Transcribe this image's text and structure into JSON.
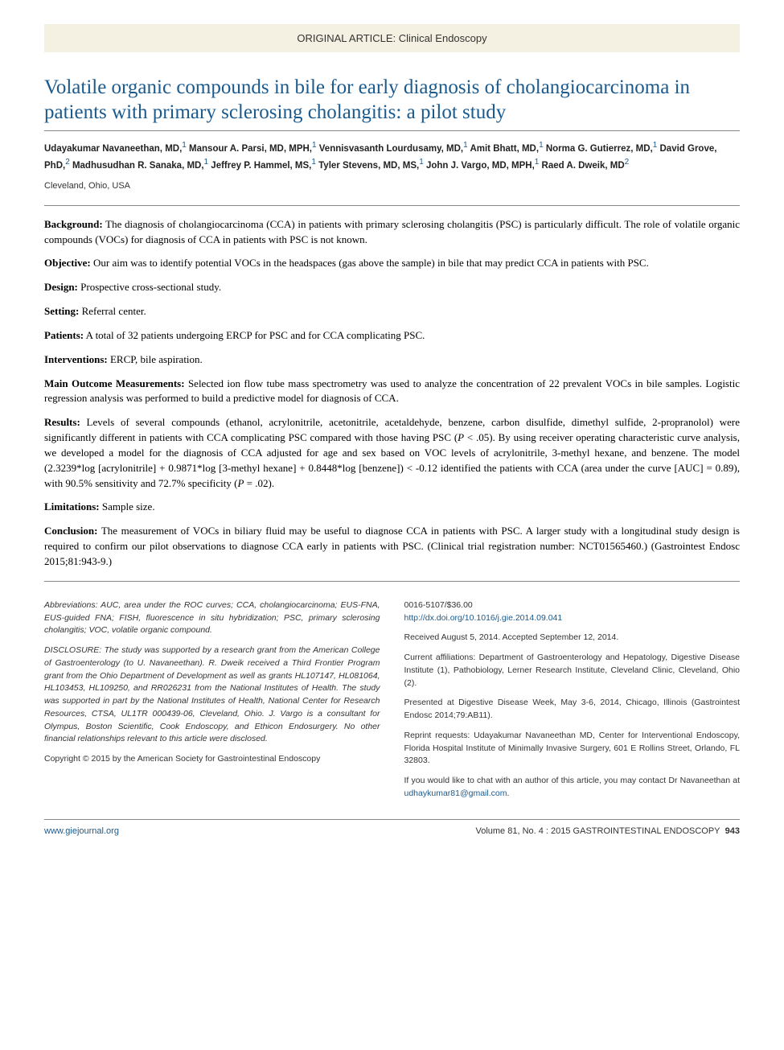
{
  "banner": {
    "text": "ORIGINAL ARTICLE: Clinical Endoscopy"
  },
  "title": "Volatile organic compounds in bile for early diagnosis of cholangiocarcinoma in patients with primary sclerosing cholangitis: a pilot study",
  "authors_html": "Udayakumar Navaneethan, MD,<sup class='aff-sup'>1</sup> Mansour A. Parsi, MD, MPH,<sup class='aff-sup'>1</sup> Vennisvasanth Lourdusamy, MD,<sup class='aff-sup'>1</sup> Amit Bhatt, MD,<sup class='aff-sup'>1</sup> Norma G. Gutierrez, MD,<sup class='aff-sup'>1</sup> David Grove, PhD,<sup class='aff-sup'>2</sup> Madhusudhan R. Sanaka, MD,<sup class='aff-sup'>1</sup> Jeffrey P. Hammel, MS,<sup class='aff-sup'>1</sup> Tyler Stevens, MD, MS,<sup class='aff-sup'>1</sup> John J. Vargo, MD, MPH,<sup class='aff-sup'>1</sup> Raed A. Dweik, MD<sup class='aff-sup'>2</sup>",
  "location": "Cleveland, Ohio, USA",
  "abstract": [
    {
      "label": "Background:",
      "text": " The diagnosis of cholangiocarcinoma (CCA) in patients with primary sclerosing cholangitis (PSC) is particularly difficult. The role of volatile organic compounds (VOCs) for diagnosis of CCA in patients with PSC is not known."
    },
    {
      "label": "Objective:",
      "text": " Our aim was to identify potential VOCs in the headspaces (gas above the sample) in bile that may predict CCA in patients with PSC."
    },
    {
      "label": "Design:",
      "text": " Prospective cross-sectional study."
    },
    {
      "label": "Setting:",
      "text": " Referral center."
    },
    {
      "label": "Patients:",
      "text": " A total of 32 patients undergoing ERCP for PSC and for CCA complicating PSC."
    },
    {
      "label": "Interventions:",
      "text": " ERCP, bile aspiration."
    },
    {
      "label": "Main Outcome Measurements:",
      "text": " Selected ion flow tube mass spectrometry was used to analyze the concentration of 22 prevalent VOCs in bile samples. Logistic regression analysis was performed to build a predictive model for diagnosis of CCA."
    },
    {
      "label": "Results:",
      "text": " Levels of several compounds (ethanol, acrylonitrile, acetonitrile, acetaldehyde, benzene, carbon disulfide, dimethyl sulfide, 2-propranolol) were significantly different in patients with CCA complicating PSC compared with those having PSC (<span class='italic'>P</span> &lt; .05). By using receiver operating characteristic curve analysis, we developed a model for the diagnosis of CCA adjusted for age and sex based on VOC levels of acrylonitrile, 3-methyl hexane, and benzene. The model (2.3239*log [acrylonitrile] + 0.9871*log [3-methyl hexane] + 0.8448*log [benzene]) &lt; -0.12 identified the patients with CCA (area under the curve [AUC] = 0.89), with 90.5% sensitivity and 72.7% specificity (<span class='italic'>P</span> = .02)."
    },
    {
      "label": "Limitations:",
      "text": " Sample size."
    },
    {
      "label": "Conclusion:",
      "text": " The measurement of VOCs in biliary fluid may be useful to diagnose CCA in patients with PSC. A larger study with a longitudinal study design is required to confirm our pilot observations to diagnose CCA early in patients with PSC. (Clinical trial registration number: NCT01565460.) (Gastrointest Endosc 2015;81:943-9.)"
    }
  ],
  "footer_left": {
    "abbrev": "Abbreviations: AUC, area under the ROC curves; CCA, cholangiocarcinoma; EUS-FNA, EUS-guided FNA; FISH, fluorescence in situ hybridization; PSC, primary sclerosing cholangitis; VOC, volatile organic compound.",
    "disclosure": "DISCLOSURE: The study was supported by a research grant from the American College of Gastroenterology (to U. Navaneethan). R. Dweik received a Third Frontier Program grant from the Ohio Department of Development as well as grants HL107147, HL081064, HL103453, HL109250, and RR026231 from the National Institutes of Health. The study was supported in part by the National Institutes of Health, National Center for Research Resources, CTSA, UL1TR 000439-06, Cleveland, Ohio. J. Vargo is a consultant for Olympus, Boston Scientific, Cook Endoscopy, and Ethicon Endosurgery. No other financial relationships relevant to this article were disclosed.",
    "copyright": "Copyright © 2015 by the American Society for Gastrointestinal Endoscopy"
  },
  "footer_right": {
    "issn": "0016-5107/$36.00",
    "doi": "http://dx.doi.org/10.1016/j.gie.2014.09.041",
    "dates": "Received August 5, 2014. Accepted September 12, 2014.",
    "affiliations": "Current affiliations: Department of Gastroenterology and Hepatology, Digestive Disease Institute (1), Pathobiology, Lerner Research Institute, Cleveland Clinic, Cleveland, Ohio (2).",
    "presented": "Presented at Digestive Disease Week, May 3-6, 2014, Chicago, Illinois (Gastrointest Endosc 2014;79:AB11).",
    "reprints": "Reprint requests: Udayakumar Navaneethan MD, Center for Interventional Endoscopy, Florida Hospital Institute of Minimally Invasive Surgery, 601 E Rollins Street, Orlando, FL 32803.",
    "contact_pre": "If you would like to chat with an author of this article, you may contact Dr Navaneethan at ",
    "contact_email": "udhaykumar81@gmail.com"
  },
  "page_footer": {
    "url": "www.giejournal.org",
    "issue": "Volume 81, No. 4 : 2015  GASTROINTESTINAL ENDOSCOPY",
    "page": "943"
  },
  "colors": {
    "banner_bg": "#f4f1e3",
    "title_color": "#1a5a8e",
    "link_color": "#1a5a8e",
    "rule_color": "#888888"
  }
}
